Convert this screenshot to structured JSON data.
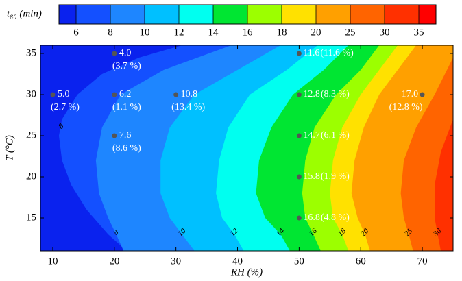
{
  "chart_data": {
    "type": "contour",
    "xlabel": "RH (%)",
    "ylabel": "T (°C)",
    "xlim": [
      8,
      75
    ],
    "xticks": [
      10,
      20,
      30,
      40,
      50,
      60,
      70
    ],
    "ylim": [
      11,
      36
    ],
    "yticks": [
      15,
      20,
      25,
      30,
      35
    ],
    "colorbar": {
      "title": "t₈₀ (min)",
      "ticks": [
        6,
        8,
        10,
        12,
        14,
        16,
        18,
        20,
        25,
        30,
        35
      ],
      "colors": [
        "#0a22ee",
        "#1450ff",
        "#1e86ff",
        "#00c0ff",
        "#00fff0",
        "#00e632",
        "#9cff00",
        "#ffe100",
        "#ffa000",
        "#ff6400",
        "#ff3000",
        "#ff0000"
      ]
    },
    "contours": [
      {
        "x": [
          31,
          24,
          18,
          14,
          11.5,
          11,
          11.5,
          13,
          15.5,
          19,
          22
        ],
        "y": [
          36,
          34.5,
          32.5,
          30,
          27,
          25,
          22,
          19,
          16,
          13,
          11
        ]
      },
      {
        "x": [
          39,
          28,
          21,
          18,
          17,
          17.5,
          19,
          20.3,
          21.5
        ],
        "y": [
          36,
          33,
          30,
          26,
          22,
          18,
          15,
          13,
          11
        ]
      },
      {
        "x": [
          47,
          40,
          33,
          29,
          27.5,
          27.5,
          29,
          31,
          33
        ],
        "y": [
          36,
          33,
          30,
          26,
          22,
          18,
          15,
          13,
          11
        ]
      },
      {
        "x": [
          53,
          48,
          42,
          38.5,
          37,
          36.5,
          37.5,
          39.5,
          41
        ],
        "y": [
          36,
          33,
          30,
          26,
          22,
          18,
          15,
          13,
          11
        ]
      },
      {
        "x": [
          58,
          54,
          49,
          45.5,
          43.5,
          43,
          44.5,
          47,
          48.5
        ],
        "y": [
          36,
          33,
          30,
          26,
          22,
          18,
          15,
          13,
          11
        ]
      },
      {
        "x": [
          63,
          60,
          56,
          52.5,
          51,
          50.5,
          51,
          52.3,
          53.5
        ],
        "y": [
          36,
          33,
          30,
          26,
          22,
          18,
          15,
          13,
          11
        ]
      },
      {
        "x": [
          66,
          63,
          60,
          57,
          55.5,
          55,
          55.5,
          57,
          58
        ],
        "y": [
          36,
          33,
          30,
          26,
          22,
          18,
          15,
          13,
          11
        ]
      },
      {
        "x": [
          69,
          66,
          63,
          60.5,
          59,
          58.5,
          59.5,
          60.7,
          61.5
        ],
        "y": [
          36,
          33,
          30,
          26,
          22,
          18,
          15,
          13,
          11
        ]
      },
      {
        "x": [
          75,
          72,
          69,
          67,
          66.5,
          67,
          67.8,
          68.5
        ],
        "y": [
          34.5,
          30,
          26,
          22,
          18,
          15,
          13,
          11
        ]
      },
      {
        "x": [
          75,
          73,
          72,
          72,
          72.5,
          73
        ],
        "y": [
          27,
          23,
          19,
          15,
          13,
          11
        ]
      }
    ],
    "contour_labels": {
      "x": [
        11.4,
        20.3,
        31,
        39.5,
        47,
        52.3,
        57,
        60.7,
        67.8,
        72.5
      ],
      "y": [
        26.1,
        13.2,
        13.2,
        13.2,
        13.2,
        13.2,
        13.2,
        13.2,
        13.2,
        13.2
      ],
      "values": [
        8,
        8,
        10,
        12,
        14,
        16,
        18,
        20,
        25,
        30
      ]
    },
    "points": {
      "color": "#555555",
      "x": [
        20,
        10,
        20,
        30,
        20,
        50,
        50,
        50,
        50,
        50,
        70
      ],
      "y": [
        35,
        30,
        30,
        30,
        25,
        35,
        30,
        25,
        20,
        15,
        30
      ],
      "labels": [
        "4.0",
        "5.0",
        "6.2",
        "10.8",
        "7.6",
        "11.6",
        "12.8",
        "14.7",
        "15.8",
        "16.8",
        "17.0"
      ],
      "sublabels": [
        "(3.7 %)",
        "(2.7 %)",
        "(1.1 %)",
        "(13.4 %)",
        "(8.6 %)",
        "(11.6 %)",
        "(8.3 %)",
        "(6.1 %)",
        "(1.9 %)",
        "(4.8 %)",
        "(12.8 %)"
      ]
    }
  }
}
